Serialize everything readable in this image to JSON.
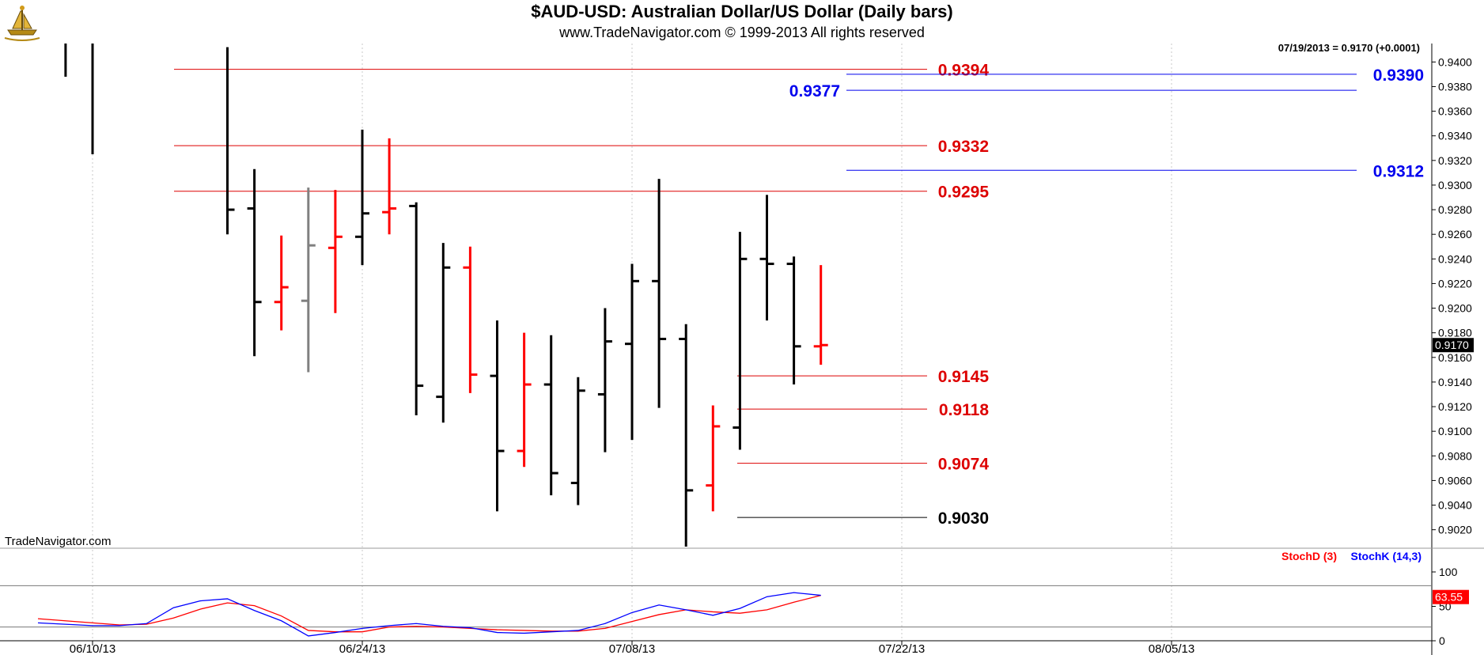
{
  "header": {
    "title": "$AUD-USD:  Australian Dollar/US Dollar  (Daily bars)",
    "subtitle": "www.TradeNavigator.com © 1999-2013 All rights reserved"
  },
  "watermark": "TradeNavigator.com",
  "last_quote": "07/19/2013 = 0.9170 (+0.0001)",
  "current_price_label": "0.9170",
  "colors": {
    "up_bar": "#000000",
    "down_bar": "#ff0000",
    "neutral_bar": "#808080",
    "red_level": "#dd0000",
    "blue_level": "#0000ee",
    "stoch_d": "#ff0000",
    "stoch_k": "#0000ff",
    "grid": "#c8c8c8"
  },
  "chart_data": [
    {
      "type": "ohlc",
      "title": "$AUD-USD:  Australian Dollar/US Dollar  (Daily bars)",
      "ylim": [
        0.9005,
        0.9415
      ],
      "y_ticks": [
        "0.9020",
        "0.9040",
        "0.9060",
        "0.9080",
        "0.9100",
        "0.9120",
        "0.9140",
        "0.9160",
        "0.9180",
        "0.9200",
        "0.9220",
        "0.9240",
        "0.9260",
        "0.9280",
        "0.9300",
        "0.9320",
        "0.9340",
        "0.9360",
        "0.9380",
        "0.9400"
      ],
      "x_ticks": [
        "06/10/13",
        "06/24/13",
        "07/08/13",
        "07/22/13",
        "08/05/13"
      ],
      "grid": true,
      "bars": [
        {
          "date": "06/07",
          "open": null,
          "high": 0.9415,
          "low": 0.9388,
          "close": null,
          "color": "black"
        },
        {
          "date": "06/10",
          "open": null,
          "high": 0.9415,
          "low": 0.9325,
          "close": null,
          "color": "black"
        },
        {
          "date": "06/17",
          "open": null,
          "high": 0.9412,
          "low": 0.926,
          "close": 0.928,
          "color": "black"
        },
        {
          "date": "06/18",
          "open": 0.9281,
          "high": 0.9313,
          "low": 0.9161,
          "close": 0.9205,
          "color": "black"
        },
        {
          "date": "06/19",
          "open": 0.9205,
          "high": 0.9259,
          "low": 0.9182,
          "close": 0.9217,
          "color": "red"
        },
        {
          "date": "06/20",
          "open": 0.9206,
          "high": 0.9298,
          "low": 0.9148,
          "close": 0.9251,
          "color": "gray"
        },
        {
          "date": "06/21",
          "open": 0.9249,
          "high": 0.9296,
          "low": 0.9196,
          "close": 0.9258,
          "color": "red"
        },
        {
          "date": "06/24",
          "open": 0.9258,
          "high": 0.9345,
          "low": 0.9235,
          "close": 0.9277,
          "color": "black"
        },
        {
          "date": "06/25",
          "open": 0.9278,
          "high": 0.9338,
          "low": 0.926,
          "close": 0.9281,
          "color": "red"
        },
        {
          "date": "06/26",
          "open": 0.9283,
          "high": 0.9286,
          "low": 0.9113,
          "close": 0.9137,
          "color": "black"
        },
        {
          "date": "06/27",
          "open": 0.9128,
          "high": 0.9253,
          "low": 0.9107,
          "close": 0.9233,
          "color": "black"
        },
        {
          "date": "06/28",
          "open": 0.9233,
          "high": 0.925,
          "low": 0.9131,
          "close": 0.9146,
          "color": "red"
        },
        {
          "date": "07/01",
          "open": 0.9145,
          "high": 0.919,
          "low": 0.9035,
          "close": 0.9084,
          "color": "black"
        },
        {
          "date": "07/02",
          "open": 0.9084,
          "high": 0.918,
          "low": 0.9071,
          "close": 0.9138,
          "color": "red"
        },
        {
          "date": "07/03",
          "open": 0.9138,
          "high": 0.9178,
          "low": 0.9048,
          "close": 0.9066,
          "color": "black"
        },
        {
          "date": "07/04",
          "open": 0.9058,
          "high": 0.9144,
          "low": 0.904,
          "close": 0.9133,
          "color": "black"
        },
        {
          "date": "07/05",
          "open": 0.913,
          "high": 0.92,
          "low": 0.9083,
          "close": 0.9173,
          "color": "black"
        },
        {
          "date": "07/08",
          "open": 0.9171,
          "high": 0.9236,
          "low": 0.9093,
          "close": 0.9222,
          "color": "black"
        },
        {
          "date": "07/09",
          "open": 0.9222,
          "high": 0.9305,
          "low": 0.9119,
          "close": 0.9175,
          "color": "black"
        },
        {
          "date": "07/10",
          "open": 0.9175,
          "high": 0.9187,
          "low": 0.9005,
          "close": 0.9052,
          "color": "black"
        },
        {
          "date": "07/11",
          "open": 0.9056,
          "high": 0.9121,
          "low": 0.9035,
          "close": 0.9104,
          "color": "red"
        },
        {
          "date": "07/12",
          "open": 0.9103,
          "high": 0.9262,
          "low": 0.9085,
          "close": 0.924,
          "color": "black"
        },
        {
          "date": "07/15",
          "open": 0.924,
          "high": 0.9292,
          "low": 0.919,
          "close": 0.9236,
          "color": "black"
        },
        {
          "date": "07/16",
          "open": 0.9236,
          "high": 0.9242,
          "low": 0.9138,
          "close": 0.9169,
          "color": "black"
        },
        {
          "date": "07/17",
          "open": 0.9169,
          "high": 0.9235,
          "low": 0.9154,
          "close": 0.917,
          "color": "red"
        }
      ],
      "levels": [
        {
          "label": "0.9394",
          "value": 0.9394,
          "color": "red"
        },
        {
          "label": "0.9390",
          "value": 0.939,
          "color": "blue"
        },
        {
          "label": "0.9377",
          "value": 0.9377,
          "color": "blue"
        },
        {
          "label": "0.9332",
          "value": 0.9332,
          "color": "red"
        },
        {
          "label": "0.9312",
          "value": 0.9312,
          "color": "blue"
        },
        {
          "label": "0.9295",
          "value": 0.9295,
          "color": "red"
        },
        {
          "label": "0.9145",
          "value": 0.9145,
          "color": "red"
        },
        {
          "label": "0.9118",
          "value": 0.9118,
          "color": "red"
        },
        {
          "label": "0.9074",
          "value": 0.9074,
          "color": "red"
        },
        {
          "label": "0.9030",
          "value": 0.903,
          "color": "black"
        }
      ]
    },
    {
      "type": "line",
      "title": "",
      "ylim": [
        0,
        100
      ],
      "y_ticks": [
        "0",
        "50",
        "100"
      ],
      "reference_lines": [
        20,
        80
      ],
      "legend": [
        "StochD (3)",
        "StochK (14,3)"
      ],
      "last_value_label": "63.55",
      "x": [
        "06/07",
        "06/10",
        "06/11",
        "06/12",
        "06/13",
        "06/14",
        "06/17",
        "06/18",
        "06/19",
        "06/20",
        "06/21",
        "06/24",
        "06/25",
        "06/26",
        "06/27",
        "06/28",
        "07/01",
        "07/02",
        "07/03",
        "07/04",
        "07/05",
        "07/08",
        "07/09",
        "07/10",
        "07/11",
        "07/12",
        "07/15",
        "07/16",
        "07/17"
      ],
      "series": [
        {
          "name": "StochD (3)",
          "values": [
            32,
            26,
            23,
            24,
            33,
            46,
            55,
            51,
            36,
            15,
            13,
            13,
            20,
            21,
            20,
            18,
            16,
            15,
            14,
            14,
            18,
            28,
            38,
            45,
            42,
            40,
            45,
            56,
            66
          ]
        },
        {
          "name": "StochK (14,3)",
          "values": [
            26,
            22,
            22,
            25,
            48,
            58,
            61,
            44,
            29,
            7,
            12,
            18,
            22,
            25,
            21,
            19,
            12,
            11,
            13,
            15,
            25,
            41,
            52,
            45,
            37,
            47,
            64,
            70,
            66
          ]
        }
      ]
    }
  ]
}
